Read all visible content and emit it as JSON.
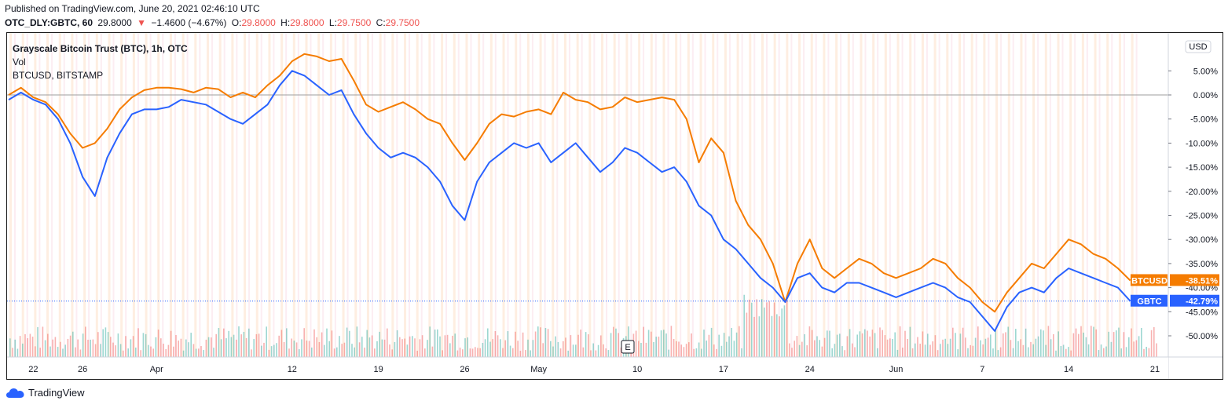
{
  "header": {
    "published": "Published on TradingView.com, June 20, 2021 02:46:10 UTC",
    "symbol": "OTC_DLY:GBTC, 60",
    "price": "29.8000",
    "change_arrow": "▼",
    "change": "−1.4600 (−4.67%)",
    "o_label": "O:",
    "o_value": "29.8000",
    "h_label": "H:",
    "h_value": "29.8000",
    "l_label": "L:",
    "l_value": "29.7500",
    "c_label": "C:",
    "c_value": "29.7500"
  },
  "legend": {
    "title": "Grayscale Bitcoin Trust (BTC), 1h, OTC",
    "vol": "Vol",
    "compare": "BTCUSD, BITSTAMP"
  },
  "currency_button": "USD",
  "earnings_marker": "E",
  "footer": {
    "brand": "TradingView"
  },
  "colors": {
    "btc": "#f57c00",
    "gbtc": "#2962ff",
    "vol_up": "#26a69a",
    "vol_down": "#ef5350",
    "session": "#fde7d4"
  },
  "chart_data": {
    "type": "line",
    "ylabel": "%",
    "ylim": [
      -55,
      10
    ],
    "y_ticks": [
      "5.00%",
      "0.00%",
      "-5.00%",
      "-10.00%",
      "-15.00%",
      "-20.00%",
      "-25.00%",
      "-30.00%",
      "-35.00%",
      "-40.00%",
      "-45.00%",
      "-50.00%"
    ],
    "y_tick_values": [
      5,
      0,
      -5,
      -10,
      -15,
      -20,
      -25,
      -30,
      -35,
      -40,
      -45,
      -50
    ],
    "x_ticks": [
      "22",
      "26",
      "Apr",
      "12",
      "19",
      "26",
      "May",
      "10",
      "17",
      "24",
      "Jun",
      "7",
      "14",
      "21"
    ],
    "x_tick_days": [
      2,
      6,
      12,
      23,
      30,
      37,
      43,
      51,
      58,
      65,
      72,
      79,
      86,
      93
    ],
    "x_range_days": [
      0,
      91
    ],
    "x_units": "days since chart start (Mar 20)",
    "series": [
      {
        "name": "BTCUSD",
        "last_label": "-38.51%",
        "last_value": -38.51,
        "points": [
          [
            0,
            0
          ],
          [
            1,
            1.5
          ],
          [
            2,
            -0.5
          ],
          [
            3,
            -1.5
          ],
          [
            4,
            -4
          ],
          [
            5,
            -8
          ],
          [
            6,
            -11
          ],
          [
            7,
            -10
          ],
          [
            8,
            -7
          ],
          [
            9,
            -3
          ],
          [
            10,
            -0.5
          ],
          [
            11,
            1
          ],
          [
            12,
            1.5
          ],
          [
            13,
            1.5
          ],
          [
            14,
            1.2
          ],
          [
            15,
            0.5
          ],
          [
            16,
            1.5
          ],
          [
            17,
            1.2
          ],
          [
            18,
            -0.5
          ],
          [
            19,
            0.5
          ],
          [
            20,
            -0.5
          ],
          [
            21,
            2
          ],
          [
            22,
            4
          ],
          [
            23,
            7
          ],
          [
            24,
            8.5
          ],
          [
            25,
            8
          ],
          [
            26,
            7
          ],
          [
            27,
            7.5
          ],
          [
            28,
            3
          ],
          [
            29,
            -2
          ],
          [
            30,
            -3.5
          ],
          [
            31,
            -2.5
          ],
          [
            32,
            -1.5
          ],
          [
            33,
            -3
          ],
          [
            34,
            -5
          ],
          [
            35,
            -6
          ],
          [
            36,
            -10
          ],
          [
            37,
            -13.5
          ],
          [
            38,
            -10
          ],
          [
            39,
            -6
          ],
          [
            40,
            -4
          ],
          [
            41,
            -4.5
          ],
          [
            42,
            -3.5
          ],
          [
            43,
            -3
          ],
          [
            44,
            -4
          ],
          [
            45,
            0.5
          ],
          [
            46,
            -1
          ],
          [
            47,
            -1.5
          ],
          [
            48,
            -3
          ],
          [
            49,
            -2.5
          ],
          [
            50,
            -0.5
          ],
          [
            51,
            -1.5
          ],
          [
            52,
            -1
          ],
          [
            53,
            -0.5
          ],
          [
            54,
            -1
          ],
          [
            55,
            -5
          ],
          [
            56,
            -14
          ],
          [
            57,
            -9
          ],
          [
            58,
            -12
          ],
          [
            59,
            -22
          ],
          [
            60,
            -27
          ],
          [
            61,
            -30
          ],
          [
            62,
            -35
          ],
          [
            63,
            -43
          ],
          [
            64,
            -35
          ],
          [
            65,
            -30
          ],
          [
            66,
            -36
          ],
          [
            67,
            -38
          ],
          [
            68,
            -36
          ],
          [
            69,
            -34
          ],
          [
            70,
            -35
          ],
          [
            71,
            -37
          ],
          [
            72,
            -38
          ],
          [
            73,
            -37
          ],
          [
            74,
            -36
          ],
          [
            75,
            -34
          ],
          [
            76,
            -35
          ],
          [
            77,
            -38
          ],
          [
            78,
            -40
          ],
          [
            79,
            -43
          ],
          [
            80,
            -45
          ],
          [
            81,
            -41
          ],
          [
            82,
            -38
          ],
          [
            83,
            -35
          ],
          [
            84,
            -36
          ],
          [
            85,
            -33
          ],
          [
            86,
            -30
          ],
          [
            87,
            -31
          ],
          [
            88,
            -33
          ],
          [
            89,
            -34
          ],
          [
            90,
            -36
          ],
          [
            91,
            -38.51
          ]
        ]
      },
      {
        "name": "GBTC",
        "last_label": "-42.79%",
        "last_value": -42.79,
        "points": [
          [
            0,
            -1
          ],
          [
            1,
            0.5
          ],
          [
            2,
            -1
          ],
          [
            3,
            -2
          ],
          [
            4,
            -5
          ],
          [
            5,
            -10
          ],
          [
            6,
            -17
          ],
          [
            7,
            -21
          ],
          [
            8,
            -13
          ],
          [
            9,
            -8
          ],
          [
            10,
            -4
          ],
          [
            11,
            -3
          ],
          [
            12,
            -3
          ],
          [
            13,
            -2.5
          ],
          [
            14,
            -1
          ],
          [
            15,
            -1.5
          ],
          [
            16,
            -2
          ],
          [
            17,
            -3.5
          ],
          [
            18,
            -5
          ],
          [
            19,
            -6
          ],
          [
            20,
            -4
          ],
          [
            21,
            -2
          ],
          [
            22,
            2
          ],
          [
            23,
            5
          ],
          [
            24,
            4
          ],
          [
            25,
            2
          ],
          [
            26,
            0
          ],
          [
            27,
            1
          ],
          [
            28,
            -4
          ],
          [
            29,
            -8
          ],
          [
            30,
            -11
          ],
          [
            31,
            -13
          ],
          [
            32,
            -12
          ],
          [
            33,
            -13
          ],
          [
            34,
            -15
          ],
          [
            35,
            -18
          ],
          [
            36,
            -23
          ],
          [
            37,
            -26
          ],
          [
            38,
            -18
          ],
          [
            39,
            -14
          ],
          [
            40,
            -12
          ],
          [
            41,
            -10
          ],
          [
            42,
            -11
          ],
          [
            43,
            -10
          ],
          [
            44,
            -14
          ],
          [
            45,
            -12
          ],
          [
            46,
            -10
          ],
          [
            47,
            -13
          ],
          [
            48,
            -16
          ],
          [
            49,
            -14
          ],
          [
            50,
            -11
          ],
          [
            51,
            -12
          ],
          [
            52,
            -14
          ],
          [
            53,
            -16
          ],
          [
            54,
            -15
          ],
          [
            55,
            -18
          ],
          [
            56,
            -23
          ],
          [
            57,
            -25
          ],
          [
            58,
            -30
          ],
          [
            59,
            -32
          ],
          [
            60,
            -35
          ],
          [
            61,
            -38
          ],
          [
            62,
            -40
          ],
          [
            63,
            -43
          ],
          [
            64,
            -38
          ],
          [
            65,
            -37
          ],
          [
            66,
            -40
          ],
          [
            67,
            -41
          ],
          [
            68,
            -39
          ],
          [
            69,
            -39
          ],
          [
            70,
            -40
          ],
          [
            71,
            -41
          ],
          [
            72,
            -42
          ],
          [
            73,
            -41
          ],
          [
            74,
            -40
          ],
          [
            75,
            -39
          ],
          [
            76,
            -40
          ],
          [
            77,
            -42
          ],
          [
            78,
            -43
          ],
          [
            79,
            -46
          ],
          [
            80,
            -49
          ],
          [
            81,
            -44
          ],
          [
            82,
            -41
          ],
          [
            83,
            -40
          ],
          [
            84,
            -41
          ],
          [
            85,
            -38
          ],
          [
            86,
            -36
          ],
          [
            87,
            -37
          ],
          [
            88,
            -38
          ],
          [
            89,
            -39
          ],
          [
            90,
            -40
          ],
          [
            91,
            -42.79
          ]
        ]
      }
    ]
  }
}
